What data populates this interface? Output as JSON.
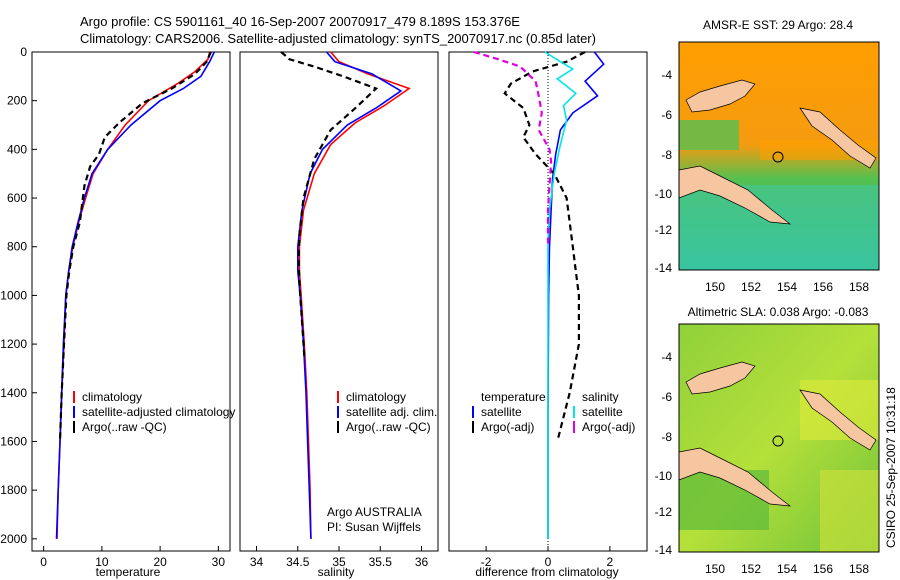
{
  "title_line1": "Argo profile: CS 5901161_40 16-Sep-2007 20070917_479 8.189S 153.376E",
  "title_line2": "Climatology: CARS2006. Satellite-adjusted climatology: synTS_20070917.nc (0.85d later)",
  "colors": {
    "climatology": "#ff0000",
    "satellite": "#0000ff",
    "argo": "#000000",
    "cyan": "#00e5e5",
    "magenta": "#e000e0"
  },
  "depth_axis": {
    "ylim": [
      0,
      2050
    ],
    "ticks": [
      0,
      200,
      400,
      600,
      800,
      1000,
      1200,
      1400,
      1600,
      1800,
      2000
    ]
  },
  "chart_data": [
    {
      "type": "line",
      "xlabel": "temperature",
      "xlim": [
        -2,
        32
      ],
      "xticks": [
        0,
        10,
        20,
        30
      ],
      "legend": [
        "climatology",
        "satellite-adjusted climatology",
        "Argo(..raw -QC)"
      ],
      "series": [
        {
          "name": "climatology",
          "color": "#ff0000",
          "dash": "",
          "points": [
            [
              28.5,
              0
            ],
            [
              28.2,
              30
            ],
            [
              26,
              80
            ],
            [
              23,
              130
            ],
            [
              18,
              200
            ],
            [
              14,
              300
            ],
            [
              11,
              400
            ],
            [
              8.5,
              500
            ],
            [
              7.2,
              600
            ],
            [
              6,
              700
            ],
            [
              5,
              800
            ],
            [
              4.3,
              900
            ],
            [
              3.8,
              1000
            ],
            [
              3.5,
              1200
            ],
            [
              3.1,
              1400
            ],
            [
              2.8,
              1600
            ],
            [
              2.5,
              1800
            ],
            [
              2.3,
              2000
            ]
          ]
        },
        {
          "name": "satellite",
          "color": "#0000ff",
          "dash": "",
          "points": [
            [
              29.3,
              0
            ],
            [
              28.5,
              40
            ],
            [
              27,
              100
            ],
            [
              24,
              150
            ],
            [
              20,
              200
            ],
            [
              15,
              300
            ],
            [
              11,
              400
            ],
            [
              8.3,
              500
            ],
            [
              7,
              600
            ],
            [
              5.9,
              700
            ],
            [
              4.9,
              800
            ],
            [
              4.3,
              900
            ],
            [
              3.8,
              1000
            ],
            [
              3.4,
              1200
            ],
            [
              3.1,
              1400
            ],
            [
              2.8,
              1600
            ],
            [
              2.5,
              1800
            ],
            [
              2.2,
              2000
            ]
          ]
        },
        {
          "name": "argo",
          "color": "#000000",
          "dash": "6,4",
          "points": [
            [
              28.7,
              0
            ],
            [
              28,
              40
            ],
            [
              26,
              90
            ],
            [
              22,
              150
            ],
            [
              17,
              210
            ],
            [
              13,
              290
            ],
            [
              10.5,
              350
            ],
            [
              9.5,
              420
            ],
            [
              8,
              470
            ],
            [
              7,
              550
            ],
            [
              6.2,
              700
            ],
            [
              5.1,
              800
            ],
            [
              4.4,
              900
            ],
            [
              3.9,
              1000
            ],
            [
              3.5,
              1200
            ],
            [
              3.1,
              1400
            ],
            [
              2.8,
              1600
            ]
          ]
        }
      ]
    },
    {
      "type": "line",
      "xlabel": "salinity",
      "xlim": [
        33.8,
        36.2
      ],
      "xticks": [
        34,
        34.5,
        35,
        35.5,
        36
      ],
      "legend": [
        "climatology",
        "satellite adj. clim.",
        "Argo(..raw -QC)"
      ],
      "annotation": [
        "Argo AUSTRALIA",
        "PI: Susan Wijffels"
      ],
      "series": [
        {
          "name": "climatology",
          "color": "#ff0000",
          "dash": "",
          "points": [
            [
              34.9,
              0
            ],
            [
              35.0,
              40
            ],
            [
              35.35,
              90
            ],
            [
              35.85,
              150
            ],
            [
              35.55,
              220
            ],
            [
              35.2,
              290
            ],
            [
              34.9,
              380
            ],
            [
              34.7,
              500
            ],
            [
              34.57,
              650
            ],
            [
              34.52,
              800
            ],
            [
              34.52,
              900
            ],
            [
              34.54,
              1000
            ],
            [
              34.58,
              1200
            ],
            [
              34.61,
              1400
            ],
            [
              34.63,
              1600
            ],
            [
              34.65,
              1800
            ],
            [
              34.66,
              2000
            ]
          ]
        },
        {
          "name": "satellite",
          "color": "#0000ff",
          "dash": "",
          "points": [
            [
              34.85,
              0
            ],
            [
              34.95,
              40
            ],
            [
              35.4,
              90
            ],
            [
              35.75,
              160
            ],
            [
              35.45,
              230
            ],
            [
              35.1,
              300
            ],
            [
              34.8,
              400
            ],
            [
              34.65,
              500
            ],
            [
              34.55,
              650
            ],
            [
              34.5,
              800
            ],
            [
              34.5,
              900
            ],
            [
              34.53,
              1000
            ],
            [
              34.57,
              1200
            ],
            [
              34.6,
              1400
            ],
            [
              34.62,
              1600
            ],
            [
              34.64,
              1800
            ],
            [
              34.66,
              2000
            ]
          ]
        },
        {
          "name": "argo",
          "color": "#000000",
          "dash": "6,4",
          "points": [
            [
              34.3,
              0
            ],
            [
              34.4,
              30
            ],
            [
              34.7,
              60
            ],
            [
              35.05,
              100
            ],
            [
              35.45,
              150
            ],
            [
              35.2,
              230
            ],
            [
              34.9,
              320
            ],
            [
              34.7,
              440
            ],
            [
              34.57,
              600
            ],
            [
              34.52,
              750
            ],
            [
              34.51,
              850
            ],
            [
              34.52,
              950
            ],
            [
              34.55,
              1100
            ],
            [
              34.58,
              1250
            ]
          ]
        }
      ]
    },
    {
      "type": "line",
      "xlabel": "difference from climatology",
      "xlim": [
        -3.2,
        3.2
      ],
      "xticks": [
        -2,
        0,
        2
      ],
      "legend_left": {
        "title": "temperature",
        "items": [
          "satellite",
          "Argo(-adj)"
        ]
      },
      "legend_right": {
        "title": "salinity",
        "items": [
          "satellite",
          "Argo(-adj)"
        ]
      },
      "series": [
        {
          "name": "temp-satellite",
          "color": "#0000ff",
          "dash": "",
          "points": [
            [
              1.5,
              0
            ],
            [
              1.8,
              50
            ],
            [
              1.2,
              120
            ],
            [
              1.6,
              180
            ],
            [
              0.8,
              250
            ],
            [
              0.4,
              320
            ],
            [
              0.25,
              420
            ],
            [
              0.15,
              520
            ],
            [
              0.1,
              650
            ],
            [
              0.05,
              800
            ],
            [
              0.02,
              1000
            ],
            [
              0,
              1500
            ],
            [
              0,
              2000
            ]
          ]
        },
        {
          "name": "temp-argo",
          "color": "#000000",
          "dash": "6,4",
          "points": [
            [
              1.2,
              0
            ],
            [
              0.6,
              40
            ],
            [
              -0.5,
              80
            ],
            [
              -1.2,
              130
            ],
            [
              -1.4,
              170
            ],
            [
              -0.8,
              230
            ],
            [
              -0.6,
              300
            ],
            [
              -0.8,
              350
            ],
            [
              -0.4,
              420
            ],
            [
              0.2,
              500
            ],
            [
              0.6,
              600
            ],
            [
              0.7,
              700
            ],
            [
              0.8,
              800
            ],
            [
              0.9,
              900
            ],
            [
              1.0,
              1000
            ],
            [
              1.0,
              1200
            ],
            [
              0.7,
              1400
            ],
            [
              0.3,
              1600
            ]
          ]
        },
        {
          "name": "sal-satellite",
          "color": "#00e5e5",
          "dash": "",
          "points": [
            [
              -0.1,
              0
            ],
            [
              0.4,
              40
            ],
            [
              0.8,
              70
            ],
            [
              0.3,
              110
            ],
            [
              0.9,
              170
            ],
            [
              0.5,
              220
            ],
            [
              0.6,
              280
            ],
            [
              0.4,
              380
            ],
            [
              0.2,
              500
            ],
            [
              0.05,
              650
            ],
            [
              0,
              800
            ],
            [
              0,
              2000
            ]
          ]
        },
        {
          "name": "sal-argo",
          "color": "#e000e0",
          "dash": "6,4",
          "points": [
            [
              -2.4,
              0
            ],
            [
              -1.6,
              30
            ],
            [
              -0.9,
              60
            ],
            [
              -0.4,
              120
            ],
            [
              -0.3,
              180
            ],
            [
              -0.2,
              250
            ],
            [
              -0.3,
              320
            ],
            [
              0.05,
              400
            ],
            [
              0.1,
              450
            ],
            [
              0.05,
              550
            ],
            [
              0,
              650
            ],
            [
              0,
              800
            ]
          ]
        }
      ]
    }
  ],
  "maps": [
    {
      "title": "AMSR-E SST: 29 Argo: 28.4",
      "xticks": [
        "150",
        "152",
        "154",
        "156",
        "158"
      ],
      "yticks": [
        "-4",
        "-6",
        "-8",
        "-10",
        "-12",
        "-14"
      ]
    },
    {
      "title": "Altimetric SLA: 0.038 Argo: -0.083",
      "xticks": [
        "150",
        "152",
        "154",
        "156",
        "158"
      ],
      "yticks": [
        "-4",
        "-6",
        "-8",
        "-10",
        "-12",
        "-14"
      ]
    }
  ],
  "footer": "CSIRO 25-Sep-2007 10:31:18"
}
